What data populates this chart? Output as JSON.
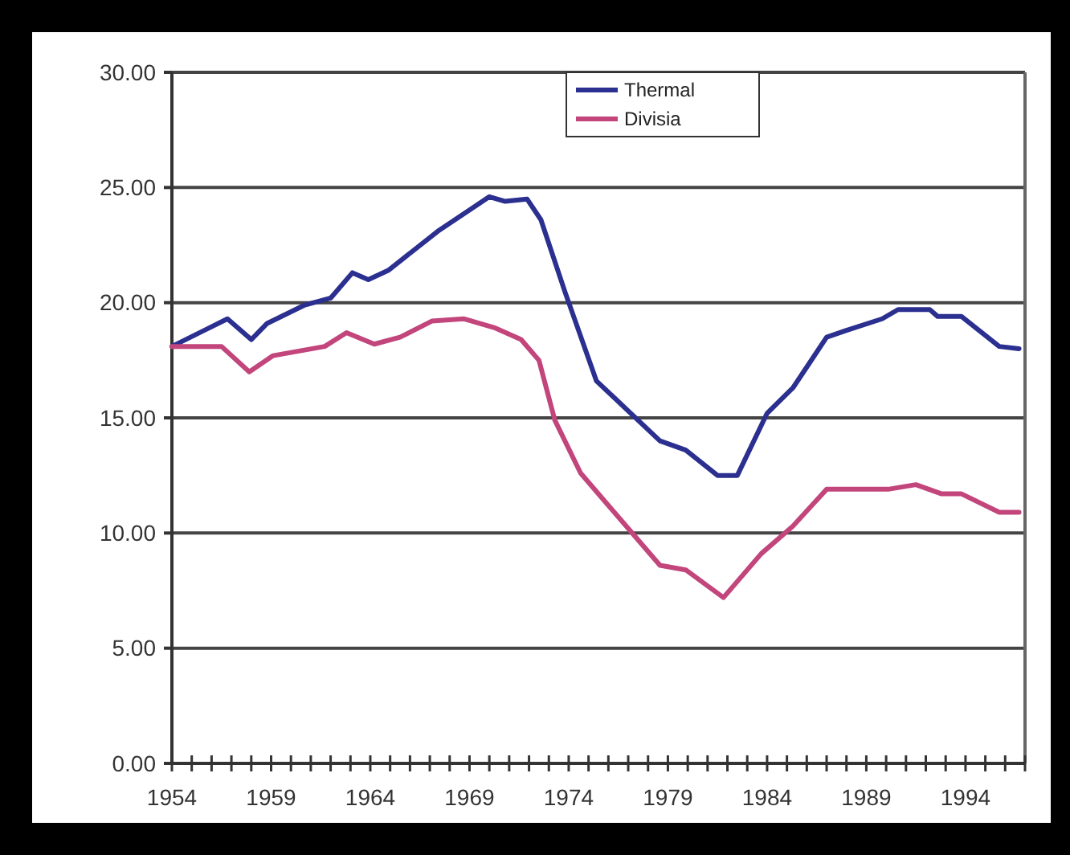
{
  "chart_data": {
    "type": "line",
    "legend": "top",
    "grid": "y",
    "line_style": "solid",
    "marker": "none",
    "xlim": [
      1954,
      1997
    ],
    "xticks": [
      {
        "value": 1954,
        "label": "1954"
      },
      {
        "value": 1955,
        "label": null
      },
      {
        "value": 1956,
        "label": null
      },
      {
        "value": 1957,
        "label": null
      },
      {
        "value": 1958,
        "label": null
      },
      {
        "value": 1959,
        "label": "1959"
      },
      {
        "value": 1960,
        "label": null
      },
      {
        "value": 1961,
        "label": null
      },
      {
        "value": 1962,
        "label": null
      },
      {
        "value": 1963,
        "label": null
      },
      {
        "value": 1964,
        "label": "1964"
      },
      {
        "value": 1965,
        "label": null
      },
      {
        "value": 1966,
        "label": null
      },
      {
        "value": 1967,
        "label": null
      },
      {
        "value": 1968,
        "label": null
      },
      {
        "value": 1969,
        "label": "1969"
      },
      {
        "value": 1970,
        "label": null
      },
      {
        "value": 1971,
        "label": null
      },
      {
        "value": 1972,
        "label": null
      },
      {
        "value": 1973,
        "label": null
      },
      {
        "value": 1974,
        "label": "1974"
      },
      {
        "value": 1975,
        "label": null
      },
      {
        "value": 1976,
        "label": null
      },
      {
        "value": 1977,
        "label": null
      },
      {
        "value": 1978,
        "label": null
      },
      {
        "value": 1979,
        "label": "1979"
      },
      {
        "value": 1980,
        "label": null
      },
      {
        "value": 1981,
        "label": null
      },
      {
        "value": 1982,
        "label": null
      },
      {
        "value": 1983,
        "label": null
      },
      {
        "value": 1984,
        "label": "1984"
      },
      {
        "value": 1985,
        "label": null
      },
      {
        "value": 1986,
        "label": null
      },
      {
        "value": 1987,
        "label": null
      },
      {
        "value": 1988,
        "label": null
      },
      {
        "value": 1989,
        "label": "1989"
      },
      {
        "value": 1990,
        "label": null
      },
      {
        "value": 1991,
        "label": null
      },
      {
        "value": 1992,
        "label": null
      },
      {
        "value": 1993,
        "label": null
      },
      {
        "value": 1994,
        "label": "1994"
      },
      {
        "value": 1995,
        "label": null
      },
      {
        "value": 1996,
        "label": null
      },
      {
        "value": 1997,
        "label": null
      }
    ],
    "ylim": [
      0,
      30
    ],
    "yticks": [
      {
        "value": 0,
        "label": "0.00"
      },
      {
        "value": 5,
        "label": "5.00"
      },
      {
        "value": 10,
        "label": "10.00"
      },
      {
        "value": 15,
        "label": "15.00"
      },
      {
        "value": 20,
        "label": "20.00"
      },
      {
        "value": 25,
        "label": "25.00"
      },
      {
        "value": 30,
        "label": "30.00"
      }
    ],
    "series": [
      {
        "name": "Thermal",
        "color": "#2b2f8f",
        "x": [
          1954,
          1956.8,
          1958,
          1958.8,
          1960.7,
          1962,
          1963.1,
          1963.9,
          1964.9,
          1967.4,
          1970,
          1970.8,
          1971.9,
          1972.6,
          1973.8,
          1975.4,
          1978.6,
          1979.9,
          1981.5,
          1982.5,
          1984,
          1985.3,
          1987,
          1988,
          1989.8,
          1990.6,
          1992.2,
          1992.6,
          1993.8,
          1995.7,
          1996.7
        ],
        "values": [
          18.1,
          19.3,
          18.4,
          19.1,
          19.9,
          20.2,
          21.3,
          21.0,
          21.4,
          23.1,
          24.6,
          24.4,
          24.5,
          23.6,
          20.5,
          16.6,
          14.0,
          13.6,
          12.5,
          12.5,
          15.2,
          16.3,
          18.5,
          18.8,
          19.3,
          19.7,
          19.7,
          19.4,
          19.4,
          18.1,
          18.0
        ]
      },
      {
        "name": "Divisia",
        "color": "#c2457b",
        "x": [
          1954,
          1956.5,
          1957.9,
          1959.1,
          1961.7,
          1962.8,
          1964.2,
          1965.5,
          1967.1,
          1968.7,
          1970.3,
          1971.6,
          1972.5,
          1973.3,
          1974.6,
          1976,
          1978.6,
          1979.9,
          1981.8,
          1983.7,
          1985.3,
          1987,
          1990.1,
          1991.5,
          1992.8,
          1993.8,
          1995.7,
          1996.7
        ],
        "values": [
          18.1,
          18.1,
          17.0,
          17.7,
          18.1,
          18.7,
          18.2,
          18.5,
          19.2,
          19.3,
          18.9,
          18.4,
          17.5,
          14.9,
          12.6,
          11.2,
          8.6,
          8.4,
          7.2,
          9.1,
          10.3,
          11.9,
          11.9,
          12.1,
          11.7,
          11.7,
          10.9,
          10.9
        ]
      }
    ]
  }
}
